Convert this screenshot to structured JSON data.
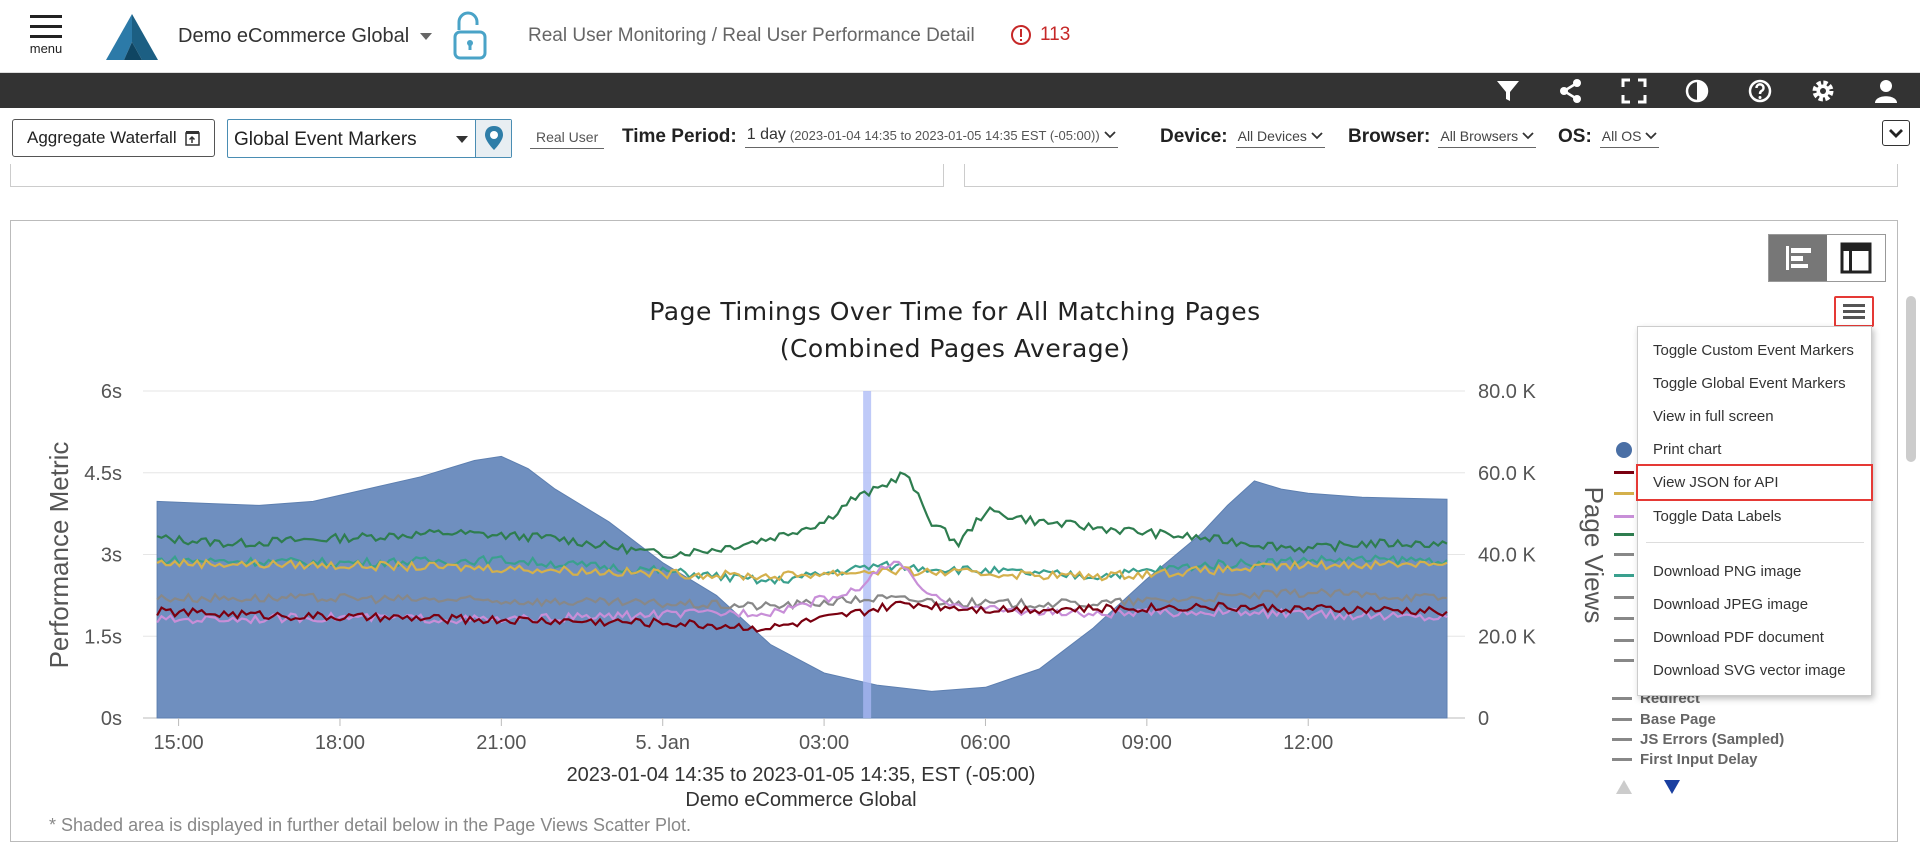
{
  "header": {
    "menu_label": "menu",
    "org_name": "Demo eCommerce Global",
    "breadcrumb": "Real User Monitoring / Real User Performance Detail",
    "alert_count": "113"
  },
  "filters": {
    "aggregate_button": "Aggregate Waterfall",
    "event_markers": "Global Event Markers",
    "real_user": "Real User",
    "time_period_label": "Time Period:",
    "time_period_value": "1 day",
    "time_period_range": "(2023-01-04 14:35 to 2023-01-05 14:35 EST (-05:00))",
    "device_label": "Device:",
    "device_value": "All Devices",
    "browser_label": "Browser:",
    "browser_value": "All Browsers",
    "os_label": "OS:",
    "os_value": "All OS"
  },
  "chart_data": {
    "type": "line",
    "title": "Page Timings Over Time for All Matching Pages",
    "subtitle": "(Combined Pages Average)",
    "ylabel": "Performance Metric",
    "y2label": "Page Views",
    "xlabel": "2023-01-04 14:35 to 2023-01-05 14:35, EST (-05:00)",
    "caption": "Demo eCommerce Global",
    "note": "* Shaded area is displayed in further detail below in the Page Views Scatter Plot.",
    "y_ticks": [
      "6s",
      "4.5s",
      "3s",
      "1.5s",
      "0s"
    ],
    "y2_ticks": [
      "80.0 K",
      "60.0 K",
      "40.0 K",
      "20.0 K",
      "0"
    ],
    "x_ticks": [
      "15:00",
      "18:00",
      "21:00",
      "5. Jan",
      "03:00",
      "06:00",
      "09:00",
      "12:00"
    ],
    "ylim": [
      0,
      6
    ],
    "y2lim": [
      0,
      80000
    ],
    "xlim_hours": [
      14.58,
      38.58
    ],
    "x_tick_hours": [
      15,
      18,
      21,
      24,
      27,
      30,
      33,
      36
    ],
    "marker_hour": 27.8,
    "page_views": {
      "hours": [
        14.6,
        15.5,
        16.5,
        17.5,
        18.5,
        19.5,
        20.5,
        21.0,
        21.5,
        22.0,
        23.0,
        24.0,
        25.0,
        26.0,
        27.0,
        28.0,
        29.0,
        30.0,
        31.0,
        32.0,
        33.0,
        34.0,
        34.5,
        35.0,
        35.5,
        36.0,
        37.0,
        38.58
      ],
      "values": [
        53000,
        52500,
        52000,
        53000,
        56000,
        59000,
        63000,
        64000,
        61000,
        56000,
        48000,
        38000,
        30000,
        18000,
        11000,
        8000,
        6500,
        7500,
        12000,
        22000,
        34000,
        45000,
        52000,
        58000,
        56000,
        55000,
        54000,
        53500
      ]
    },
    "series": [
      {
        "name": "",
        "color": "#2e7d4f",
        "hours": [
          14.6,
          16,
          18,
          20,
          22,
          24,
          25,
          26,
          27,
          27.5,
          28,
          28.5,
          29,
          29.5,
          30,
          31,
          32,
          33,
          34,
          35,
          36,
          37,
          38.58
        ],
        "values": [
          3.3,
          3.2,
          3.3,
          3.4,
          3.3,
          3.0,
          3.1,
          3.3,
          3.6,
          4.0,
          4.2,
          4.5,
          3.6,
          3.2,
          3.8,
          3.6,
          3.5,
          3.4,
          3.3,
          3.2,
          3.1,
          3.2,
          3.2
        ]
      },
      {
        "name": "",
        "color": "#3aa08e",
        "hours": [
          14.6,
          18,
          21,
          24,
          26,
          28,
          30,
          32,
          34,
          36,
          38.58
        ],
        "values": [
          2.9,
          2.85,
          2.9,
          2.7,
          2.5,
          2.8,
          2.7,
          2.6,
          2.8,
          2.9,
          2.9
        ]
      },
      {
        "name": "",
        "color": "#d4b04c",
        "hours": [
          14.6,
          18,
          21,
          24,
          26,
          28,
          30,
          32,
          34,
          36,
          38.58
        ],
        "values": [
          2.85,
          2.8,
          2.75,
          2.65,
          2.6,
          2.7,
          2.65,
          2.6,
          2.7,
          2.8,
          2.85
        ]
      },
      {
        "name": "",
        "color": "#888888",
        "hours": [
          14.6,
          18,
          21,
          24,
          26,
          28,
          30,
          32,
          34,
          36,
          38.58
        ],
        "values": [
          2.2,
          2.2,
          2.15,
          2.1,
          2.05,
          2.2,
          2.1,
          2.1,
          2.2,
          2.3,
          2.2
        ]
      },
      {
        "name": "",
        "color": "#c88fd8",
        "hours": [
          14.6,
          18,
          21,
          24,
          26,
          27.5,
          28.3,
          29,
          30,
          32,
          34,
          36,
          38.58
        ],
        "values": [
          1.8,
          1.85,
          1.8,
          1.9,
          1.95,
          2.3,
          2.9,
          2.2,
          2.0,
          1.9,
          1.95,
          1.9,
          1.85
        ]
      },
      {
        "name": "",
        "color": "#7a0010",
        "hours": [
          14.6,
          18,
          21,
          24,
          26,
          27.5,
          28.5,
          30,
          32,
          34,
          36,
          38.58
        ],
        "values": [
          1.95,
          1.85,
          1.8,
          1.75,
          1.65,
          1.9,
          2.1,
          2.0,
          2.0,
          2.05,
          2.0,
          1.95
        ]
      }
    ]
  },
  "legend": {
    "items": [
      "Redirect",
      "Base Page",
      "JS Errors (Sampled)",
      "First Input Delay"
    ],
    "hidden_swatch_colors": [
      "#4a6fa5",
      "#7a0010",
      "#d4b04c",
      "#c88fd8",
      "#2e7d4f",
      "#888888",
      "#3aa08e",
      "#888888",
      "#888888",
      "#888888",
      "#888888"
    ]
  },
  "context_menu": {
    "items": [
      "Toggle Custom Event Markers",
      "Toggle Global Event Markers",
      "View in full screen",
      "Print chart",
      "View JSON for API",
      "Toggle Data Labels"
    ],
    "download_items": [
      "Download PNG image",
      "Download JPEG image",
      "Download PDF document",
      "Download SVG vector image"
    ]
  },
  "colors": {
    "area_fill": "#6f8fbf",
    "marker_band": "#a9b8f5",
    "highlight": "#e53935",
    "toolbar_bg": "#333333",
    "accent": "#1c5f83"
  }
}
